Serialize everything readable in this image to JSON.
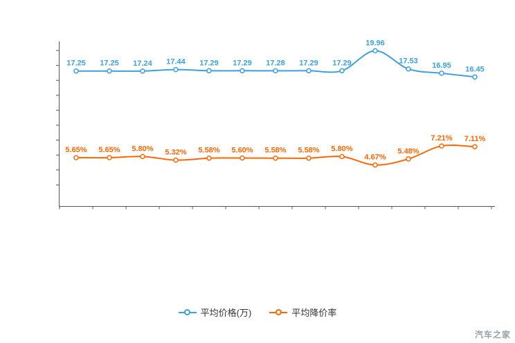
{
  "watermark": {
    "text": "汽车之家"
  },
  "chart_data": {
    "type": "line",
    "title": "",
    "grid": false,
    "legend_position": "bottom",
    "x_axis": {
      "tick_labels_visible": false,
      "category_count": 13
    },
    "y_axis": {
      "tick_labels_visible": false,
      "approx_range": [
        0,
        21
      ]
    },
    "axis_color": "#555555",
    "series": [
      {
        "key": "avg-price",
        "name": "平均价格(万)",
        "color": "#3ba0dc",
        "values": [
          17.25,
          17.25,
          17.24,
          17.44,
          17.29,
          17.29,
          17.28,
          17.29,
          17.29,
          19.96,
          17.53,
          16.95,
          16.45
        ],
        "labels": [
          "17.25",
          "17.25",
          "17.24",
          "17.44",
          "17.29",
          "17.29",
          "17.28",
          "17.29",
          "17.29",
          "19.96",
          "17.53",
          "16.95",
          "16.45"
        ]
      },
      {
        "key": "avg-discount-rate",
        "name": "平均降价率",
        "color": "#ff6600",
        "values": [
          5.65,
          5.65,
          5.8,
          5.32,
          5.58,
          5.6,
          5.58,
          5.58,
          5.8,
          4.67,
          5.48,
          7.21,
          7.11
        ],
        "labels": [
          "5.65%",
          "5.65%",
          "5.80%",
          "5.32%",
          "5.58%",
          "5.60%",
          "5.58%",
          "5.58%",
          "5.80%",
          "4.67%",
          "5.48%",
          "7.21%",
          "7.11%"
        ]
      }
    ]
  }
}
